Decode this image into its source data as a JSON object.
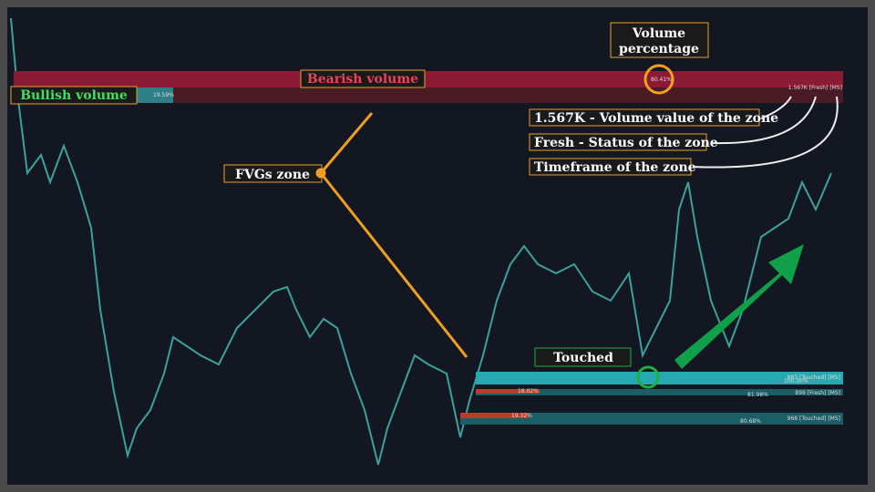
{
  "header": {
    "volume_label": [
      "Volume",
      "percentage"
    ]
  },
  "top_zone": {
    "bearish_label": "Bearish volume",
    "bullish_label": "Bullish volume",
    "bullish_pct": "19.59%",
    "bearish_pct": "80.41%",
    "zone_info": "1.567K [Fresh] [MS]"
  },
  "legend": {
    "volume": "1.567K - Volume value of the zone",
    "status": "Fresh - Status of the zone",
    "timeframe": "Timeframe of the zone"
  },
  "fvg_label": "FVGs zone",
  "touched_label": "Touched",
  "bottom_zones": [
    {
      "info": "883 [Touched] [MS]",
      "pct": "100.00%"
    },
    {
      "info": "899 [Fresh] [MS]",
      "bearish_pct": "18.02%",
      "bullish_pct": "81.98%"
    },
    {
      "info": "968 [Touched] [MS]",
      "bearish_pct": "19.32%",
      "bullish_pct": "80.68%"
    }
  ]
}
